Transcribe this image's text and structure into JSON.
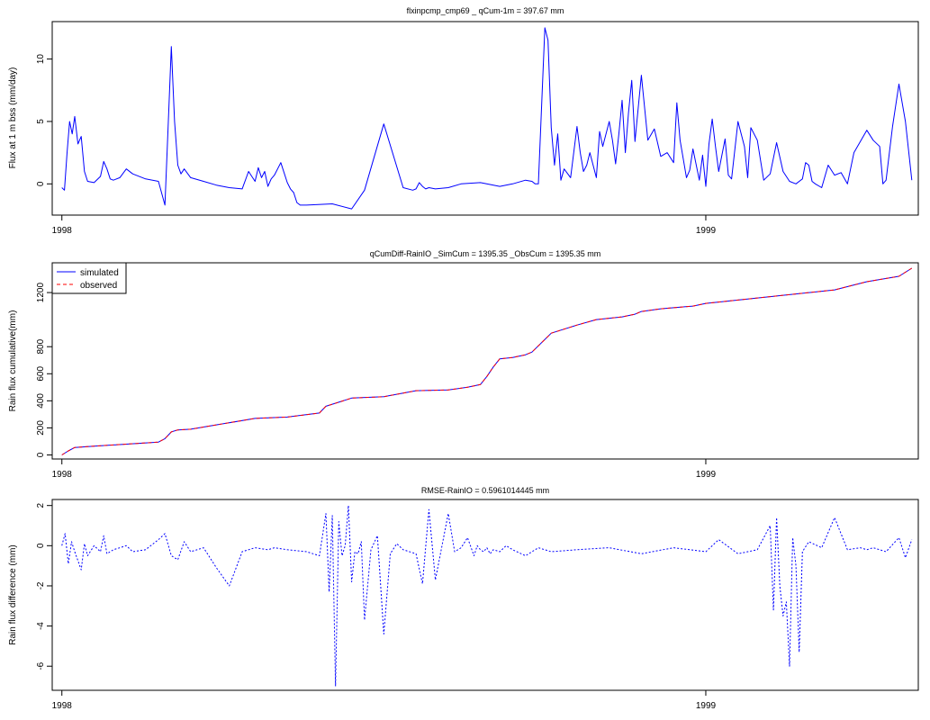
{
  "chart_data": [
    {
      "id": "flux",
      "type": "line",
      "title": "flxinpcmp_cmp69 _ qCum-1m  =  397.67  mm",
      "xlabel": "",
      "ylabel": "Flux at 1 m bss (mm/day)",
      "xlim": [
        1997.985,
        1999.33
      ],
      "ylim": [
        -2.5,
        13
      ],
      "yticks": [
        0,
        5,
        10
      ],
      "ytick_labels": [
        "0",
        "5",
        "10"
      ],
      "xticks": [
        1998,
        1999
      ],
      "xtick_labels": [
        "1998",
        "1999"
      ],
      "grid": false,
      "series": [
        {
          "color": "#0000ff",
          "dash": "",
          "x": [
            1998.0,
            1998.004,
            1998.008,
            1998.012,
            1998.016,
            1998.02,
            1998.025,
            1998.03,
            1998.035,
            1998.04,
            1998.05,
            1998.06,
            1998.065,
            1998.07,
            1998.075,
            1998.08,
            1998.09,
            1998.1,
            1998.11,
            1998.13,
            1998.15,
            1998.16,
            1998.165,
            1998.17,
            1998.175,
            1998.18,
            1998.185,
            1998.19,
            1998.2,
            1998.22,
            1998.24,
            1998.26,
            1998.28,
            1998.29,
            1998.3,
            1998.305,
            1998.31,
            1998.315,
            1998.32,
            1998.325,
            1998.33,
            1998.34,
            1998.35,
            1998.355,
            1998.36,
            1998.365,
            1998.37,
            1998.38,
            1998.42,
            1998.45,
            1998.47,
            1998.5,
            1998.53,
            1998.545,
            1998.55,
            1998.555,
            1998.56,
            1998.565,
            1998.57,
            1998.58,
            1998.6,
            1998.62,
            1998.65,
            1998.68,
            1998.7,
            1998.72,
            1998.73,
            1998.735,
            1998.74,
            1998.75,
            1998.755,
            1998.76,
            1998.765,
            1998.77,
            1998.775,
            1998.78,
            1998.79,
            1998.8,
            1998.805,
            1998.81,
            1998.815,
            1998.82,
            1998.825,
            1998.83,
            1998.835,
            1998.84,
            1998.85,
            1998.855,
            1998.86,
            1998.865,
            1998.87,
            1998.875,
            1998.88,
            1998.885,
            1998.89,
            1998.9,
            1998.91,
            1998.92,
            1998.93,
            1998.94,
            1998.95,
            1998.955,
            1998.96,
            1998.97,
            1998.975,
            1998.98,
            1998.99,
            1998.995,
            1999.0,
            1999.005,
            1999.01,
            1999.015,
            1999.02,
            1999.03,
            1999.035,
            1999.04,
            1999.05,
            1999.06,
            1999.065,
            1999.07,
            1999.08,
            1999.09,
            1999.1,
            1999.11,
            1999.12,
            1999.13,
            1999.14,
            1999.15,
            1999.155,
            1999.16,
            1999.165,
            1999.17,
            1999.18,
            1999.19,
            1999.2,
            1999.21,
            1999.22,
            1999.23,
            1999.25,
            1999.26,
            1999.27,
            1999.275,
            1999.28,
            1999.29,
            1999.3,
            1999.31,
            1999.32
          ],
          "y": [
            -0.3,
            -0.5,
            2.5,
            5.0,
            4.0,
            5.4,
            3.2,
            3.8,
            1.0,
            0.2,
            0.1,
            0.6,
            1.8,
            1.2,
            0.4,
            0.3,
            0.5,
            1.2,
            0.8,
            0.4,
            0.2,
            -1.7,
            4.5,
            11.0,
            5.0,
            1.5,
            0.8,
            1.2,
            0.5,
            0.2,
            -0.1,
            -0.3,
            -0.4,
            1.0,
            0.2,
            1.3,
            0.5,
            1.0,
            -0.2,
            0.4,
            0.7,
            1.7,
            0.1,
            -0.4,
            -0.7,
            -1.5,
            -1.7,
            -1.7,
            -1.6,
            -2.0,
            -0.5,
            4.8,
            -0.3,
            -0.5,
            -0.4,
            0.1,
            -0.2,
            -0.4,
            -0.3,
            -0.4,
            -0.3,
            0.0,
            0.1,
            -0.2,
            0.0,
            0.3,
            0.2,
            0.0,
            0.0,
            12.5,
            11.5,
            4.5,
            1.5,
            4.0,
            0.3,
            1.2,
            0.5,
            4.6,
            2.5,
            1.0,
            1.5,
            2.5,
            1.5,
            0.5,
            4.2,
            3.0,
            5.0,
            3.5,
            1.6,
            4.0,
            6.7,
            2.5,
            5.7,
            8.3,
            3.4,
            8.7,
            3.5,
            4.4,
            2.2,
            2.5,
            1.7,
            6.5,
            3.5,
            0.5,
            1.1,
            2.8,
            0.3,
            2.3,
            -0.2,
            3.2,
            5.2,
            3.0,
            1.0,
            3.6,
            0.7,
            0.4,
            5.0,
            3.0,
            0.5,
            4.5,
            3.5,
            0.3,
            0.8,
            3.3,
            1.0,
            0.2,
            0.0,
            0.4,
            1.7,
            1.5,
            0.2,
            0.0,
            -0.3,
            1.5,
            0.7,
            0.9,
            0.0,
            2.5,
            4.3,
            3.5,
            3.0,
            0.0,
            0.3,
            4.6,
            8.0,
            5.0,
            0.3
          ]
        }
      ]
    },
    {
      "id": "cumulative",
      "type": "line",
      "title": "qCumDiff-RainIO _SimCum =  1395.35 _ObsCum =  1395.35  mm",
      "xlabel": "",
      "ylabel": "Rain flux cumulative(mm)",
      "xlim": [
        1997.985,
        1999.33
      ],
      "ylim": [
        -30,
        1420
      ],
      "yticks": [
        0,
        200,
        400,
        600,
        800,
        1200
      ],
      "ytick_labels": [
        "0",
        "200",
        "400",
        "600",
        "800",
        "1200"
      ],
      "xticks": [
        1998,
        1999
      ],
      "xtick_labels": [
        "1998",
        "1999"
      ],
      "grid": false,
      "legend": {
        "position": "top-left",
        "entries": [
          {
            "label": "simulated",
            "color": "#0000ff",
            "dash": ""
          },
          {
            "label": "observed",
            "color": "#ff0000",
            "dash": "4,3"
          }
        ]
      },
      "series": [
        {
          "name": "simulated",
          "color": "#0000ff",
          "dash": "",
          "x": [
            1998.0,
            1998.01,
            1998.02,
            1998.05,
            1998.1,
            1998.15,
            1998.16,
            1998.17,
            1998.18,
            1998.2,
            1998.25,
            1998.3,
            1998.35,
            1998.4,
            1998.41,
            1998.43,
            1998.45,
            1998.5,
            1998.55,
            1998.6,
            1998.63,
            1998.65,
            1998.66,
            1998.67,
            1998.68,
            1998.7,
            1998.72,
            1998.73,
            1998.76,
            1998.8,
            1998.83,
            1998.87,
            1998.89,
            1998.9,
            1998.93,
            1998.98,
            1999.0,
            1999.1,
            1999.2,
            1999.25,
            1999.3,
            1999.32
          ],
          "y": [
            0,
            30,
            55,
            65,
            80,
            95,
            120,
            170,
            185,
            190,
            230,
            270,
            280,
            310,
            360,
            390,
            420,
            430,
            475,
            480,
            500,
            520,
            580,
            650,
            710,
            720,
            740,
            760,
            900,
            960,
            1000,
            1020,
            1040,
            1060,
            1080,
            1100,
            1120,
            1170,
            1220,
            1280,
            1320,
            1380
          ]
        },
        {
          "name": "observed",
          "color": "#ff0000",
          "dash": "4,3",
          "x": [
            1998.0,
            1998.01,
            1998.02,
            1998.05,
            1998.1,
            1998.15,
            1998.16,
            1998.17,
            1998.18,
            1998.2,
            1998.25,
            1998.3,
            1998.35,
            1998.4,
            1998.41,
            1998.43,
            1998.45,
            1998.5,
            1998.55,
            1998.6,
            1998.63,
            1998.65,
            1998.66,
            1998.67,
            1998.68,
            1998.7,
            1998.72,
            1998.73,
            1998.76,
            1998.8,
            1998.83,
            1998.87,
            1998.89,
            1998.9,
            1998.93,
            1998.98,
            1999.0,
            1999.1,
            1999.2,
            1999.25,
            1999.3,
            1999.32
          ],
          "y": [
            0,
            30,
            55,
            65,
            80,
            95,
            120,
            170,
            185,
            190,
            230,
            270,
            280,
            310,
            360,
            390,
            420,
            430,
            475,
            480,
            500,
            520,
            580,
            650,
            710,
            720,
            740,
            760,
            900,
            960,
            1000,
            1020,
            1040,
            1060,
            1080,
            1100,
            1120,
            1170,
            1220,
            1280,
            1320,
            1380
          ]
        }
      ]
    },
    {
      "id": "difference",
      "type": "line",
      "title": "RMSE-RainIO  =  0.5961014445  mm",
      "xlabel": "",
      "ylabel": "Rain flux difference (mm)",
      "xlim": [
        1997.985,
        1999.33
      ],
      "ylim": [
        -7.2,
        2.3
      ],
      "yticks": [
        -6,
        -4,
        -2,
        0,
        2
      ],
      "ytick_labels": [
        "-6",
        "-4",
        "-2",
        "0",
        "2"
      ],
      "xticks": [
        1998,
        1999
      ],
      "xtick_labels": [
        "1998",
        "1999"
      ],
      "grid": false,
      "series": [
        {
          "color": "#0000ff",
          "dash": "2,2",
          "x": [
            1998.0,
            1998.005,
            1998.01,
            1998.015,
            1998.02,
            1998.03,
            1998.035,
            1998.04,
            1998.05,
            1998.06,
            1998.065,
            1998.07,
            1998.08,
            1998.09,
            1998.1,
            1998.11,
            1998.13,
            1998.15,
            1998.16,
            1998.17,
            1998.18,
            1998.19,
            1998.2,
            1998.22,
            1998.24,
            1998.26,
            1998.28,
            1998.3,
            1998.32,
            1998.33,
            1998.35,
            1998.38,
            1998.4,
            1998.41,
            1998.415,
            1998.42,
            1998.425,
            1998.43,
            1998.435,
            1998.44,
            1998.445,
            1998.45,
            1998.455,
            1998.46,
            1998.465,
            1998.47,
            1998.48,
            1998.49,
            1998.5,
            1998.51,
            1998.52,
            1998.53,
            1998.55,
            1998.56,
            1998.57,
            1998.58,
            1998.6,
            1998.61,
            1998.62,
            1998.63,
            1998.64,
            1998.645,
            1998.65,
            1998.655,
            1998.66,
            1998.665,
            1998.67,
            1998.68,
            1998.69,
            1998.7,
            1998.72,
            1998.74,
            1998.76,
            1998.8,
            1998.85,
            1998.9,
            1998.95,
            1999.0,
            1999.02,
            1999.05,
            1999.08,
            1999.1,
            1999.105,
            1999.11,
            1999.115,
            1999.12,
            1999.125,
            1999.13,
            1999.135,
            1999.14,
            1999.145,
            1999.15,
            1999.16,
            1999.18,
            1999.2,
            1999.22,
            1999.24,
            1999.25,
            1999.26,
            1999.28,
            1999.3,
            1999.31,
            1999.32
          ],
          "y": [
            0.0,
            0.6,
            -0.9,
            0.2,
            -0.3,
            -1.2,
            0.1,
            -0.5,
            0.0,
            -0.3,
            0.5,
            -0.4,
            -0.2,
            -0.1,
            0.0,
            -0.3,
            -0.2,
            0.3,
            0.6,
            -0.5,
            -0.7,
            0.2,
            -0.3,
            -0.1,
            -1.1,
            -2.0,
            -0.3,
            -0.1,
            -0.2,
            -0.1,
            -0.2,
            -0.3,
            -0.5,
            1.6,
            -2.3,
            1.5,
            -7.0,
            1.2,
            -0.5,
            0.0,
            2.0,
            -1.8,
            -0.3,
            -0.4,
            0.2,
            -3.7,
            -0.2,
            0.5,
            -4.4,
            -0.4,
            0.1,
            -0.2,
            -0.4,
            -1.9,
            1.8,
            -1.7,
            1.6,
            -0.3,
            -0.1,
            0.4,
            -0.5,
            0.0,
            -0.2,
            -0.3,
            -0.1,
            -0.4,
            -0.2,
            -0.3,
            0.0,
            -0.2,
            -0.5,
            -0.1,
            -0.3,
            -0.2,
            -0.1,
            -0.4,
            -0.1,
            -0.3,
            0.3,
            -0.4,
            -0.2,
            1.0,
            -3.2,
            1.4,
            -2.0,
            -3.5,
            -2.8,
            -6.0,
            0.4,
            -1.0,
            -5.3,
            -0.3,
            0.2,
            -0.1,
            1.4,
            -0.2,
            -0.1,
            -0.2,
            -0.1,
            -0.3,
            0.4,
            -0.6,
            0.3
          ]
        }
      ]
    }
  ]
}
